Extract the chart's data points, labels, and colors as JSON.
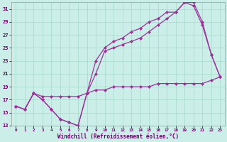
{
  "xlabel": "Windchill (Refroidissement éolien,°C)",
  "bg_color": "#cceee8",
  "grid_color": "#aaddcc",
  "line_color": "#993399",
  "xlim": [
    -0.5,
    23.5
  ],
  "ylim": [
    13,
    32
  ],
  "yticks": [
    13,
    15,
    17,
    19,
    21,
    23,
    25,
    27,
    29,
    31
  ],
  "xticks": [
    0,
    1,
    2,
    3,
    4,
    5,
    6,
    7,
    8,
    9,
    10,
    11,
    12,
    13,
    14,
    15,
    16,
    17,
    18,
    19,
    20,
    21,
    22,
    23
  ],
  "line1_x": [
    0,
    1,
    2,
    3,
    4,
    5,
    6,
    7,
    8,
    9,
    10,
    11,
    12,
    13,
    14,
    15,
    16,
    17,
    18,
    19,
    20,
    21,
    22,
    23
  ],
  "line1_y": [
    16,
    15.5,
    18,
    17,
    15.5,
    14,
    13.5,
    13,
    18,
    21,
    24.5,
    25,
    25.5,
    26,
    26.5,
    27.5,
    28.5,
    29.5,
    30.5,
    32,
    32,
    29,
    24,
    20.5
  ],
  "line2_x": [
    0,
    1,
    2,
    3,
    4,
    5,
    6,
    7,
    8,
    9,
    10,
    11,
    12,
    13,
    14,
    15,
    16,
    17,
    18,
    19,
    20,
    21,
    22,
    23
  ],
  "line2_y": [
    16,
    15.5,
    18,
    17,
    15.5,
    14,
    13.5,
    13,
    18,
    23,
    25,
    26,
    26.5,
    27.5,
    28,
    29,
    29.5,
    30.5,
    30.5,
    32,
    31.5,
    28.5,
    24,
    20.5
  ],
  "line3_x": [
    0,
    1,
    2,
    3,
    4,
    5,
    6,
    7,
    8,
    9,
    10,
    11,
    12,
    13,
    14,
    15,
    16,
    17,
    18,
    19,
    20,
    21,
    22,
    23
  ],
  "line3_y": [
    16,
    15.5,
    18,
    17.5,
    17.5,
    17.5,
    17.5,
    17.5,
    18,
    18.5,
    18.5,
    19,
    19,
    19,
    19,
    19,
    19.5,
    19.5,
    19.5,
    19.5,
    19.5,
    19.5,
    20,
    20.5
  ]
}
